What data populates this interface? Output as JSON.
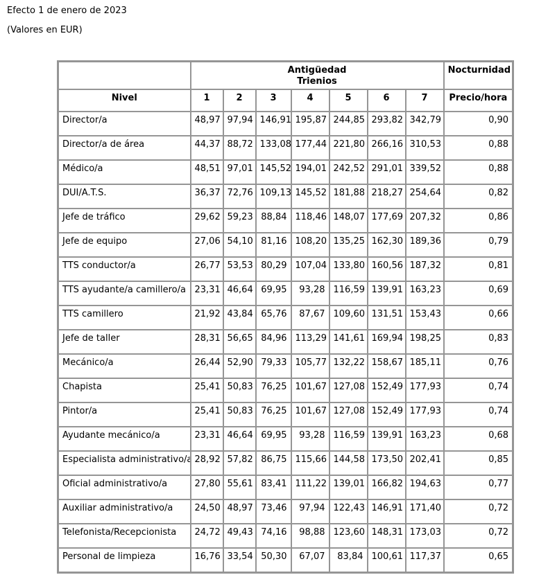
{
  "page": {
    "title_line1": "Efecto 1 de enero de 2023",
    "title_line2": "(Valores en EUR)"
  },
  "table": {
    "border_color": "#959595",
    "headers": {
      "antiguedad_line1": "Antigüedad",
      "antiguedad_line2": "Trienios",
      "nocturnidad": "Nocturnidad",
      "nivel": "Nivel",
      "trienio_numbers": [
        "1",
        "2",
        "3",
        "4",
        "5",
        "6",
        "7"
      ],
      "precio_hora": "Precio/hora"
    },
    "rows": [
      {
        "nivel": "Director/a",
        "values": [
          "48,97",
          "97,94",
          "146,91",
          "195,87",
          "244,85",
          "293,82",
          "342,79"
        ],
        "precio": "0,90"
      },
      {
        "nivel": "Director/a de área",
        "values": [
          "44,37",
          "88,72",
          "133,08",
          "177,44",
          "221,80",
          "266,16",
          "310,53"
        ],
        "precio": "0,88"
      },
      {
        "nivel": "Médico/a",
        "values": [
          "48,51",
          "97,01",
          "145,52",
          "194,01",
          "242,52",
          "291,01",
          "339,52"
        ],
        "precio": "0,88"
      },
      {
        "nivel": "DUI/A.T.S.",
        "values": [
          "36,37",
          "72,76",
          "109,13",
          "145,52",
          "181,88",
          "218,27",
          "254,64"
        ],
        "precio": "0,82"
      },
      {
        "nivel": "Jefe de tráfico",
        "values": [
          "29,62",
          "59,23",
          "88,84",
          "118,46",
          "148,07",
          "177,69",
          "207,32"
        ],
        "precio": "0,86"
      },
      {
        "nivel": "Jefe de equipo",
        "values": [
          "27,06",
          "54,10",
          "81,16",
          "108,20",
          "135,25",
          "162,30",
          "189,36"
        ],
        "precio": "0,79"
      },
      {
        "nivel": "TTS conductor/a",
        "values": [
          "26,77",
          "53,53",
          "80,29",
          "107,04",
          "133,80",
          "160,56",
          "187,32"
        ],
        "precio": "0,81"
      },
      {
        "nivel": "TTS ayudante/a camillero/a",
        "values": [
          "23,31",
          "46,64",
          "69,95",
          "93,28",
          "116,59",
          "139,91",
          "163,23"
        ],
        "precio": "0,69"
      },
      {
        "nivel": "TTS camillero",
        "values": [
          "21,92",
          "43,84",
          "65,76",
          "87,67",
          "109,60",
          "131,51",
          "153,43"
        ],
        "precio": "0,66"
      },
      {
        "nivel": "Jefe de taller",
        "values": [
          "28,31",
          "56,65",
          "84,96",
          "113,29",
          "141,61",
          "169,94",
          "198,25"
        ],
        "precio": "0,83"
      },
      {
        "nivel": "Mecánico/a",
        "values": [
          "26,44",
          "52,90",
          "79,33",
          "105,77",
          "132,22",
          "158,67",
          "185,11"
        ],
        "precio": "0,76"
      },
      {
        "nivel": "Chapista",
        "values": [
          "25,41",
          "50,83",
          "76,25",
          "101,67",
          "127,08",
          "152,49",
          "177,93"
        ],
        "precio": "0,74"
      },
      {
        "nivel": "Pintor/a",
        "values": [
          "25,41",
          "50,83",
          "76,25",
          "101,67",
          "127,08",
          "152,49",
          "177,93"
        ],
        "precio": "0,74"
      },
      {
        "nivel": "Ayudante mecánico/a",
        "values": [
          "23,31",
          "46,64",
          "69,95",
          "93,28",
          "116,59",
          "139,91",
          "163,23"
        ],
        "precio": "0,68"
      },
      {
        "nivel": "Especialista administrativo/a",
        "values": [
          "28,92",
          "57,82",
          "86,75",
          "115,66",
          "144,58",
          "173,50",
          "202,41"
        ],
        "precio": "0,85"
      },
      {
        "nivel": "Oficial administrativo/a",
        "values": [
          "27,80",
          "55,61",
          "83,41",
          "111,22",
          "139,01",
          "166,82",
          "194,63"
        ],
        "precio": "0,77"
      },
      {
        "nivel": "Auxiliar administrativo/a",
        "values": [
          "24,50",
          "48,97",
          "73,46",
          "97,94",
          "122,43",
          "146,91",
          "171,40"
        ],
        "precio": "0,72"
      },
      {
        "nivel": "Telefonista/Recepcionista",
        "values": [
          "24,72",
          "49,43",
          "74,16",
          "98,88",
          "123,60",
          "148,31",
          "173,03"
        ],
        "precio": "0,72"
      },
      {
        "nivel": "Personal de limpieza",
        "values": [
          "16,76",
          "33,54",
          "50,30",
          "67,07",
          "83,84",
          "100,61",
          "117,37"
        ],
        "precio": "0,65"
      }
    ]
  }
}
